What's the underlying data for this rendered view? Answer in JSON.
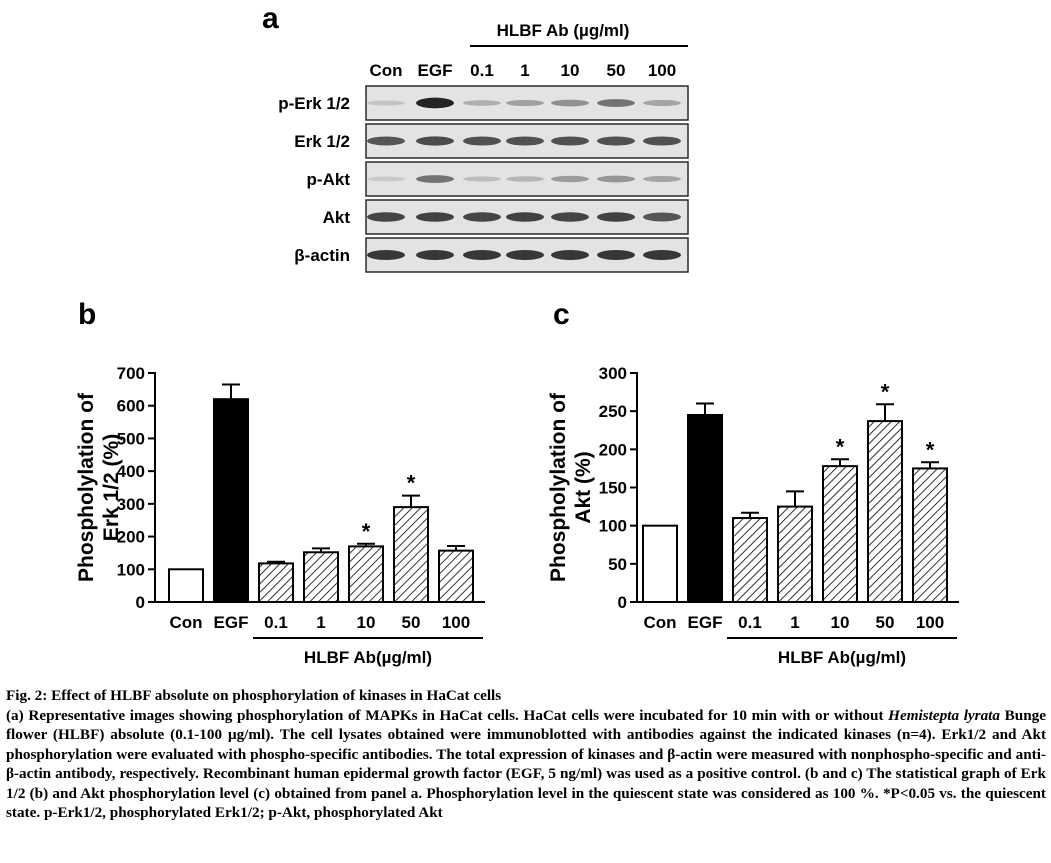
{
  "panel_a": {
    "letter": "a",
    "group_label": "HLBF Ab (µg/ml)",
    "lanes": [
      "Con",
      "EGF",
      "0.1",
      "1",
      "10",
      "50",
      "100"
    ],
    "rows": [
      "p-Erk 1/2",
      "Erk 1/2",
      "p-Akt",
      "Akt",
      "β-actin"
    ],
    "band_intensity": [
      [
        0.15,
        0.95,
        0.25,
        0.32,
        0.4,
        0.55,
        0.3
      ],
      [
        0.7,
        0.75,
        0.72,
        0.72,
        0.72,
        0.72,
        0.72
      ],
      [
        0.12,
        0.55,
        0.18,
        0.22,
        0.35,
        0.38,
        0.3
      ],
      [
        0.78,
        0.8,
        0.78,
        0.8,
        0.78,
        0.8,
        0.7
      ],
      [
        0.85,
        0.85,
        0.85,
        0.85,
        0.85,
        0.85,
        0.85
      ]
    ]
  },
  "chart_data": [
    {
      "panel": "b",
      "type": "bar",
      "categories": [
        "Con",
        "EGF",
        "0.1",
        "1",
        "10",
        "50",
        "100"
      ],
      "values": [
        100,
        620,
        118,
        152,
        170,
        290,
        157
      ],
      "errors": [
        0,
        45,
        5,
        12,
        8,
        35,
        14
      ],
      "styles": [
        "open",
        "solid",
        "hatched",
        "hatched",
        "hatched",
        "hatched",
        "hatched"
      ],
      "significant": [
        false,
        false,
        false,
        false,
        true,
        true,
        false
      ],
      "significance_mark": "*",
      "ylabel": "Phospholylation of Erk 1/2 (%)",
      "xgroup_label": "HLBF Ab(µg/ml)",
      "ylim": [
        0,
        700
      ],
      "yticks": [
        0,
        100,
        200,
        300,
        400,
        500,
        600,
        700
      ]
    },
    {
      "panel": "c",
      "type": "bar",
      "categories": [
        "Con",
        "EGF",
        "0.1",
        "1",
        "10",
        "50",
        "100"
      ],
      "values": [
        100,
        245,
        110,
        125,
        178,
        237,
        175
      ],
      "errors": [
        0,
        15,
        7,
        20,
        9,
        22,
        8
      ],
      "styles": [
        "open",
        "solid",
        "hatched",
        "hatched",
        "hatched",
        "hatched",
        "hatched"
      ],
      "significant": [
        false,
        false,
        false,
        false,
        true,
        true,
        true
      ],
      "significance_mark": "*",
      "ylabel": "Phospholylation of Akt (%)",
      "xgroup_label": "HLBF Ab(µg/ml)",
      "ylim": [
        0,
        300
      ],
      "yticks": [
        0,
        50,
        100,
        150,
        200,
        250,
        300
      ]
    }
  ],
  "caption": {
    "title": "Fig. 2: Effect of HLBF absolute on phosphorylation of kinases in HaCat cells",
    "p1_a": "(a) Representative images showing phosphorylation of MAPKs in HaCat cells. HaCat cells were incubated for 10 min with or without ",
    "p1_species": "Hemistepta lyrata",
    "p1_b": " Bunge flower (HLBF) absolute (0.1-100 μg/ml). The cell lysates obtained were immunoblotted with antibodies against the indicated kinases (n=4). Erk1/2 and Akt phosphorylation were evaluated with phospho-specific antibodies. The total expression of kinases and β-actin were measured with nonphospho-specific and anti-β-actin antibody, respectively. Recombinant human epidermal growth factor (EGF, 5 ng/ml) was used as a positive control. (b and c) The statistical graph of Erk 1/2 (b) and Akt phosphorylation level (c) obtained from panel a. Phosphorylation level in the quiescent state was considered as 100 %. *P<0.05 vs. the quiescent state. p-Erk1/2, phosphorylated Erk1/2; p-Akt, phosphorylated Akt"
  }
}
